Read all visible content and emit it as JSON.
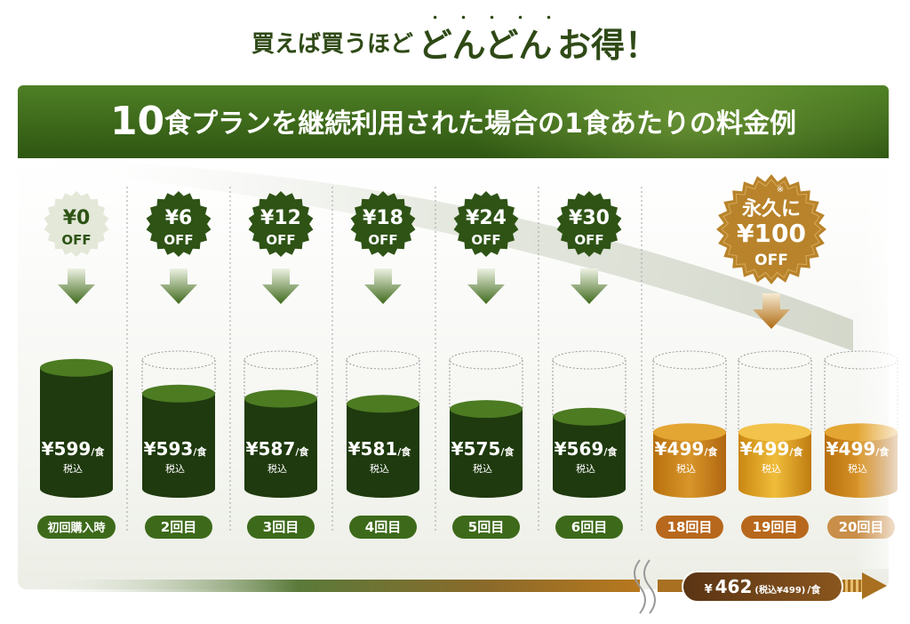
{
  "headline": {
    "part1": "買えば買うほど",
    "dots": "・・・・・",
    "part2": "どんどん",
    "part3": "お得！"
  },
  "banner": {
    "num": "10",
    "text": "食プランを継続利用された場合の1食あたりの料金例"
  },
  "colors": {
    "green_dark": "#1e3a0d",
    "green_top": "#4d7a22",
    "gold_body": "#c07a16",
    "gold_top": "#e6a931",
    "badge_gold": "#b8832a"
  },
  "tiers": [
    {
      "discount": "¥0",
      "off": "OFF",
      "price": "¥599",
      "unit": "/食",
      "tax": "税込",
      "label": "初回購入時",
      "fill": 0.94,
      "theme": "pale"
    },
    {
      "discount": "¥6",
      "off": "OFF",
      "price": "¥593",
      "unit": "/食",
      "tax": "税込",
      "label": "2回目",
      "fill": 0.74,
      "theme": "green"
    },
    {
      "discount": "¥12",
      "off": "OFF",
      "price": "¥587",
      "unit": "/食",
      "tax": "税込",
      "label": "3回目",
      "fill": 0.7,
      "theme": "green"
    },
    {
      "discount": "¥18",
      "off": "OFF",
      "price": "¥581",
      "unit": "/食",
      "tax": "税込",
      "label": "4回目",
      "fill": 0.66,
      "theme": "green"
    },
    {
      "discount": "¥24",
      "off": "OFF",
      "price": "¥575",
      "unit": "/食",
      "tax": "税込",
      "label": "5回目",
      "fill": 0.62,
      "theme": "green"
    },
    {
      "discount": "¥30",
      "off": "OFF",
      "price": "¥569",
      "unit": "/食",
      "tax": "税込",
      "label": "6回目",
      "fill": 0.56,
      "theme": "green"
    },
    {
      "discount": "",
      "off": "",
      "price": "¥499",
      "unit": "/食",
      "tax": "税込",
      "label": "18回目",
      "fill": 0.44,
      "theme": "gold"
    },
    {
      "discount": "",
      "off": "",
      "price": "¥499",
      "unit": "/食",
      "tax": "税込",
      "label": "19回目",
      "fill": 0.44,
      "theme": "gold"
    },
    {
      "discount": "",
      "off": "",
      "price": "¥499",
      "unit": "/食",
      "tax": "税込",
      "label": "20回目",
      "fill": 0.44,
      "theme": "gold"
    }
  ],
  "permanent": {
    "line1": "永久に",
    "mark": "※",
    "price": "¥100",
    "off": "OFF"
  },
  "footer": {
    "yen": "¥",
    "value": "462",
    "tax": "(税込¥499)",
    "unit": "/食"
  }
}
